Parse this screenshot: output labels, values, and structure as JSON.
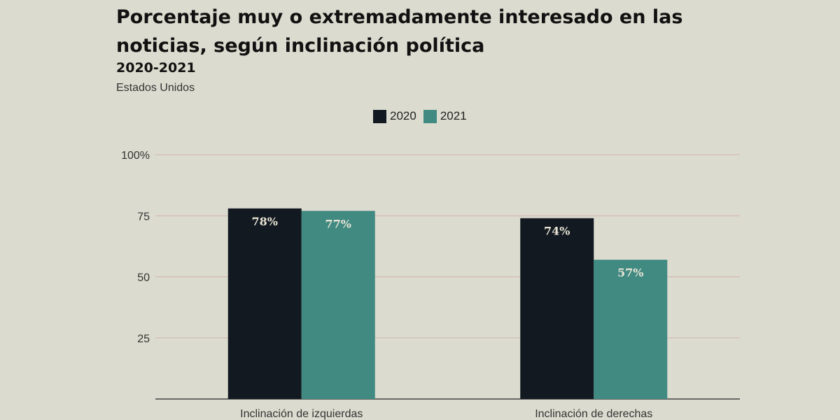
{
  "chart_data": {
    "type": "bar",
    "title": "Porcentaje muy o extremadamente interesado en las noticias, según inclinación política",
    "subtitle": "2020-2021",
    "note": "Estados Unidos",
    "categories": [
      "Inclinación de izquierdas",
      "Inclinación de derechas"
    ],
    "series": [
      {
        "name": "2020",
        "color": "#121921",
        "values": [
          78,
          74
        ],
        "labels": [
          "78%",
          "74%"
        ]
      },
      {
        "name": "2021",
        "color": "#408a82",
        "values": [
          77,
          57
        ],
        "labels": [
          "77%",
          "57%"
        ]
      }
    ],
    "ylim": [
      0,
      100
    ],
    "yticks": [
      {
        "value": 100,
        "label": "100%"
      },
      {
        "value": 75,
        "label": "75"
      },
      {
        "value": 50,
        "label": "50"
      },
      {
        "value": 25,
        "label": "25"
      }
    ],
    "grid": true,
    "legend_position": "top-center"
  }
}
